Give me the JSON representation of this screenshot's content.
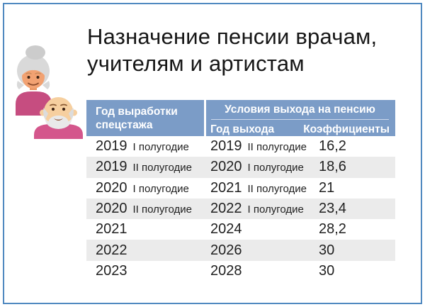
{
  "slide": {
    "title_line1": "Назначение пенсии врачам,",
    "title_line2": "учителям и артистам"
  },
  "colors": {
    "border": "#5089c0",
    "header_bg": "#7b9cc7",
    "header_text": "#ffffff",
    "stripe": "#ebebeb",
    "title_text": "#161616",
    "body_text": "#212121"
  },
  "illustration": {
    "name": "elderly-couple",
    "colors": {
      "hair_gray": "#d9d9d9",
      "hair_gray_dark": "#cccccc",
      "beard_gray": "#e9e9e9",
      "skin_woman": "#f2a272",
      "skin_man": "#f6cf9f",
      "shirt_woman": "#c64d80",
      "shirt_man": "#d4568c",
      "features_dark": "#3d2314",
      "brow_brown": "#8a5a33"
    }
  },
  "table": {
    "col1_header_line1": "Год выработки",
    "col1_header_line2": "спецстажа",
    "group_header": "Условия выхода на пенсию",
    "col2_header": "Год выхода",
    "col3_header": "Коэффициенты",
    "rows": [
      {
        "service_year": "2019",
        "service_half": "I полугодие",
        "exit_year": "2019",
        "exit_half": "II полугодие",
        "coefficient": "16,2"
      },
      {
        "service_year": "2019",
        "service_half": "II полугодие",
        "exit_year": "2020",
        "exit_half": "I полугодие",
        "coefficient": "18,6"
      },
      {
        "service_year": "2020",
        "service_half": "I полугодие",
        "exit_year": "2021",
        "exit_half": "II полугодие",
        "coefficient": "21"
      },
      {
        "service_year": "2020",
        "service_half": "II полугодие",
        "exit_year": "2022",
        "exit_half": "I полугодие",
        "coefficient": "23,4"
      },
      {
        "service_year": "2021",
        "service_half": "",
        "exit_year": "2024",
        "exit_half": "",
        "coefficient": "28,2"
      },
      {
        "service_year": "2022",
        "service_half": "",
        "exit_year": "2026",
        "exit_half": "",
        "coefficient": "30"
      },
      {
        "service_year": "2023",
        "service_half": "",
        "exit_year": "2028",
        "exit_half": "",
        "coefficient": "30"
      }
    ]
  }
}
